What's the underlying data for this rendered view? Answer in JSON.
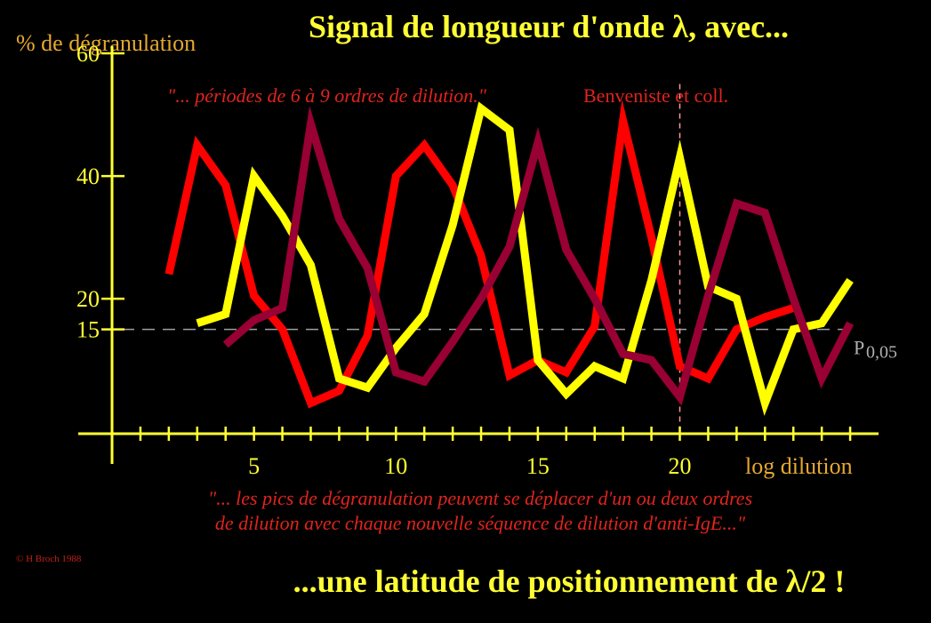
{
  "title": "Signal de longueur d'onde λ, avec...",
  "bottom_title": "...une latitude de positionnement de λ/2 !",
  "quote_top": "\"... périodes de 6 à 9  ordres de dilution.\"",
  "attribution": "Benveniste et coll.",
  "quote_bottom_1": "\"... les pics de dégranulation peuvent se déplacer d'un ou deux ordres",
  "quote_bottom_2": "de dilution avec chaque nouvelle séquence de dilution d'anti-IgE...\"",
  "copyright": "© H Broch 1988",
  "colors": {
    "red": "#ff0000",
    "yellow": "#ffff00",
    "purple": "#990033",
    "axis": "#ffff33",
    "label": "#e6a830",
    "threshold": "#a0a0a0",
    "marker": "#ff9999"
  },
  "chart_data": {
    "type": "line",
    "ylabel": "% de dégranulation",
    "xlabel": "log dilution",
    "xlim": [
      0,
      27
    ],
    "ylim": [
      -2,
      60
    ],
    "x_tick_labels": [
      {
        "x": 5,
        "label": "5"
      },
      {
        "x": 10,
        "label": "10"
      },
      {
        "x": 15,
        "label": "15"
      },
      {
        "x": 20,
        "label": "20"
      }
    ],
    "y_tick_labels": [
      {
        "y": 60,
        "label": "60"
      },
      {
        "y": 40,
        "label": "40"
      },
      {
        "y": 20,
        "label": "20"
      },
      {
        "y": 15,
        "label": "15"
      }
    ],
    "threshold": {
      "y": 15,
      "label": "P",
      "subscript": "0,05"
    },
    "marker_x": 20,
    "series": [
      {
        "color": "#ff0000",
        "x": [
          2,
          3,
          4,
          5,
          6,
          7,
          8,
          9,
          10,
          11,
          12,
          13,
          14,
          15,
          16,
          17,
          18,
          19,
          20,
          21,
          22,
          23,
          24
        ],
        "y": [
          24,
          45,
          38.5,
          20.5,
          15,
          3,
          5,
          14,
          40,
          45,
          38.5,
          27,
          7.5,
          10,
          8,
          15.5,
          49,
          30,
          9,
          7,
          15,
          17,
          18.5
        ]
      },
      {
        "color": "#ffff00",
        "x": [
          3,
          4,
          5,
          6,
          7,
          8,
          9,
          10,
          11,
          12,
          13,
          14,
          15,
          16,
          17,
          18,
          19,
          20,
          21,
          22,
          23,
          24,
          25,
          26
        ],
        "y": [
          16,
          17.5,
          40,
          33.5,
          25.5,
          7,
          5.5,
          12,
          17.5,
          32,
          51,
          47.5,
          10,
          4.5,
          9,
          7,
          23,
          43,
          22,
          20,
          3,
          15,
          16,
          23
        ]
      },
      {
        "color": "#990033",
        "x": [
          4,
          5,
          6,
          7,
          8,
          9,
          10,
          11,
          12,
          13,
          14,
          15,
          16,
          17,
          18,
          19,
          20,
          21,
          22,
          23,
          24,
          25,
          26
        ],
        "y": [
          12.5,
          16.5,
          18.5,
          48.5,
          33,
          25,
          8,
          6.5,
          13,
          20,
          28.5,
          45.5,
          28,
          20,
          11,
          10,
          4,
          20.5,
          35.5,
          34,
          20,
          7,
          16
        ]
      }
    ]
  }
}
